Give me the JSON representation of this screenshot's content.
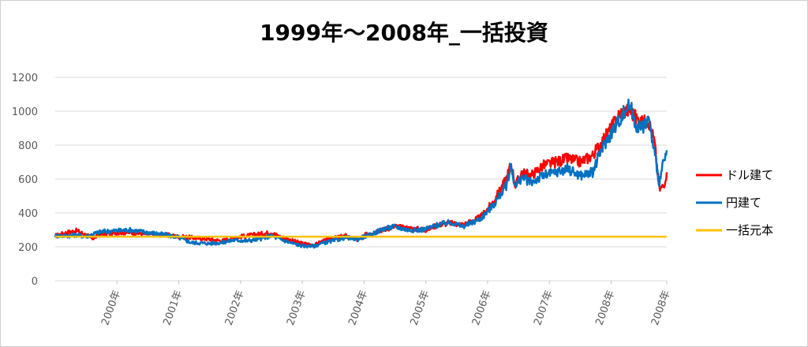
{
  "chart_data": {
    "type": "line",
    "title": "1999年～2008年_一括投資",
    "xlabel": "",
    "ylabel": "",
    "ylim": [
      0,
      1200
    ],
    "yticks": [
      0,
      200,
      400,
      600,
      800,
      1000,
      1200
    ],
    "xlim": [
      1999.0,
      2008.9
    ],
    "xticks": [
      {
        "label": "2000年",
        "x": 2000.0
      },
      {
        "label": "2001年",
        "x": 2001.0
      },
      {
        "label": "2002年",
        "x": 2002.0
      },
      {
        "label": "2003年",
        "x": 2003.0
      },
      {
        "label": "2004年",
        "x": 2004.0
      },
      {
        "label": "2005年",
        "x": 2005.0
      },
      {
        "label": "2006年",
        "x": 2006.0
      },
      {
        "label": "2007年",
        "x": 2007.0
      },
      {
        "label": "2008年",
        "x": 2008.0
      },
      {
        "label": "2008年",
        "x": 2008.9
      }
    ],
    "grid": true,
    "legend_position": "right",
    "series": [
      {
        "name": "ドル建て",
        "color": "#ff0000",
        "x": [
          1999.0,
          1999.2,
          1999.35,
          1999.5,
          1999.6,
          1999.75,
          2000.0,
          2000.2,
          2000.5,
          2000.8,
          2001.0,
          2001.2,
          2001.5,
          2001.7,
          2001.9,
          2002.1,
          2002.3,
          2002.5,
          2002.6,
          2002.8,
          2003.0,
          2003.2,
          2003.3,
          2003.5,
          2003.7,
          2003.9,
          2004.0,
          2004.1,
          2004.3,
          2004.5,
          2004.7,
          2004.9,
          2005.0,
          2005.2,
          2005.4,
          2005.6,
          2005.8,
          2005.9,
          2006.1,
          2006.3,
          2006.38,
          2006.45,
          2006.55,
          2006.7,
          2006.9,
          2007.1,
          2007.3,
          2007.5,
          2007.7,
          2007.85,
          2008.0,
          2008.15,
          2008.3,
          2008.4,
          2008.5,
          2008.6,
          2008.7,
          2008.78,
          2008.85,
          2008.9
        ],
        "values": [
          265,
          285,
          295,
          270,
          250,
          275,
          285,
          285,
          275,
          270,
          260,
          255,
          245,
          235,
          255,
          265,
          275,
          285,
          265,
          240,
          220,
          210,
          230,
          250,
          265,
          240,
          265,
          285,
          300,
          320,
          310,
          305,
          300,
          330,
          340,
          330,
          360,
          380,
          470,
          600,
          690,
          560,
          640,
          620,
          680,
          700,
          720,
          700,
          740,
          820,
          900,
          990,
          1010,
          960,
          930,
          950,
          820,
          540,
          560,
          640
        ]
      },
      {
        "name": "円建て",
        "color": "#0070c0",
        "x": [
          1999.0,
          1999.2,
          1999.35,
          1999.5,
          1999.6,
          1999.75,
          2000.0,
          2000.2,
          2000.5,
          2000.8,
          2001.0,
          2001.2,
          2001.5,
          2001.7,
          2001.9,
          2002.1,
          2002.3,
          2002.5,
          2002.6,
          2002.8,
          2003.0,
          2003.2,
          2003.3,
          2003.5,
          2003.7,
          2003.9,
          2004.0,
          2004.1,
          2004.3,
          2004.5,
          2004.7,
          2004.9,
          2005.0,
          2005.2,
          2005.4,
          2005.6,
          2005.8,
          2005.9,
          2006.1,
          2006.3,
          2006.38,
          2006.45,
          2006.55,
          2006.7,
          2006.9,
          2007.1,
          2007.3,
          2007.5,
          2007.7,
          2007.85,
          2008.0,
          2008.15,
          2008.3,
          2008.4,
          2008.5,
          2008.6,
          2008.7,
          2008.78,
          2008.85,
          2008.9
        ],
        "values": [
          265,
          265,
          270,
          260,
          275,
          290,
          295,
          300,
          285,
          270,
          255,
          225,
          220,
          225,
          240,
          235,
          245,
          265,
          250,
          225,
          205,
          205,
          220,
          235,
          255,
          245,
          260,
          270,
          305,
          320,
          300,
          300,
          305,
          330,
          345,
          320,
          350,
          370,
          450,
          560,
          680,
          550,
          610,
          580,
          620,
          640,
          660,
          620,
          640,
          780,
          870,
          960,
          1040,
          920,
          900,
          960,
          760,
          580,
          700,
          770
        ]
      },
      {
        "name": "一括元本",
        "color": "#ffc000",
        "x": [
          1999.0,
          2008.9
        ],
        "values": [
          260,
          260
        ]
      }
    ]
  }
}
